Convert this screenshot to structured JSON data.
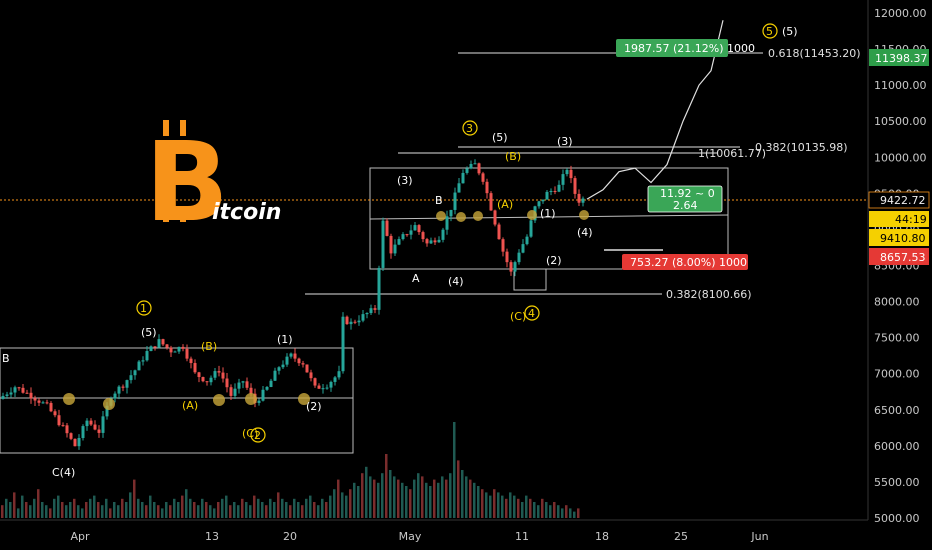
{
  "logo": {
    "letter": "B",
    "text": "itcoin",
    "color": "#f7931a"
  },
  "chart_data": {
    "type": "candlestick",
    "y_axis": {
      "ylim": [
        5000,
        12200
      ],
      "ticks": [
        "12000.00",
        "11500.00",
        "11000.00",
        "10500.00",
        "10000.00",
        "9500.00",
        "9000.00",
        "8500.00",
        "8000.00",
        "7500.00",
        "7000.00",
        "6500.00",
        "6000.00",
        "5500.00",
        "5000.00"
      ]
    },
    "x_axis": {
      "ticks": [
        "Apr",
        "13",
        "20",
        "May",
        "11",
        "18",
        "25",
        "Jun"
      ]
    },
    "price_tags": [
      {
        "label": "11398.37",
        "color": "#2e9e4a"
      },
      {
        "label": "9422.72",
        "color": "#f5d000",
        "text_color": "#000000"
      },
      {
        "label": "44:19",
        "color": "#f5d000",
        "text_color": "#000000"
      },
      {
        "label": "9410.80",
        "color": "#f5d000",
        "text_color": "#000000"
      },
      {
        "label": "8657.53",
        "color": "#e53935"
      }
    ],
    "current_price": 9422.72,
    "fib_levels": [
      {
        "label": "0.618(11453.20)",
        "value": 11453.2
      },
      {
        "label": "1(10061.77)",
        "value": 10061.77
      },
      {
        "label": "0.382(10135.98)",
        "value": 10135.98
      },
      {
        "label": "0.382(8100.66)",
        "value": 8100.66
      }
    ],
    "measure_boxes": [
      {
        "label": "1987.57 (21.12%) 1000",
        "color": "#3aa657"
      },
      {
        "label": "11.92 ~ 0",
        "label2": "2.64",
        "color": "#3aa657"
      },
      {
        "label": "753.27 (8.00%) 1000",
        "color": "#e53935"
      }
    ],
    "wave_labels": {
      "white": [
        "B",
        "C(4)",
        "(5)",
        "(1)",
        "(2)",
        "(3)",
        "A",
        "B",
        "(4)",
        "(5)",
        "(3)",
        "(1)",
        "(2)",
        "(4)",
        "(5)"
      ],
      "yellow": [
        "(B)",
        "(A)",
        "(C)",
        "(B)",
        "(A)",
        "(C)"
      ],
      "circled": [
        "1",
        "2",
        "3",
        "4",
        "5"
      ]
    },
    "price_path": [
      [
        0,
        6650
      ],
      [
        4,
        6820
      ],
      [
        8,
        6700
      ],
      [
        12,
        6550
      ],
      [
        16,
        6250
      ],
      [
        19,
        6000
      ],
      [
        22,
        6350
      ],
      [
        25,
        6200
      ],
      [
        28,
        6700
      ],
      [
        31,
        6850
      ],
      [
        34,
        7050
      ],
      [
        37,
        7300
      ],
      [
        40,
        7450
      ],
      [
        43,
        7320
      ],
      [
        46,
        7380
      ],
      [
        49,
        7000
      ],
      [
        52,
        6900
      ],
      [
        55,
        7050
      ],
      [
        58,
        6700
      ],
      [
        61,
        6900
      ],
      [
        64,
        6600
      ],
      [
        67,
        6800
      ],
      [
        70,
        7100
      ],
      [
        73,
        7250
      ],
      [
        76,
        7150
      ],
      [
        79,
        6800
      ],
      [
        82,
        6850
      ],
      [
        85,
        7000
      ],
      [
        86,
        7750
      ],
      [
        88,
        7700
      ],
      [
        91,
        7800
      ],
      [
        94,
        7900
      ],
      [
        96,
        9100
      ],
      [
        98,
        8700
      ],
      [
        101,
        8900
      ],
      [
        104,
        9050
      ],
      [
        107,
        8800
      ],
      [
        110,
        8900
      ],
      [
        113,
        9300
      ],
      [
        116,
        9800
      ],
      [
        119,
        9900
      ],
      [
        121,
        9700
      ],
      [
        124,
        9100
      ],
      [
        126,
        8700
      ],
      [
        128,
        8400
      ],
      [
        130,
        8700
      ],
      [
        132,
        8900
      ],
      [
        134,
        9300
      ],
      [
        137,
        9500
      ],
      [
        140,
        9600
      ],
      [
        142,
        9850
      ],
      [
        144,
        9500
      ],
      [
        145,
        9400
      ],
      [
        146,
        9420
      ]
    ],
    "projection_path": [
      [
        146,
        9420
      ],
      [
        150,
        9550
      ],
      [
        154,
        9800
      ],
      [
        158,
        9850
      ],
      [
        162,
        9650
      ],
      [
        166,
        9900
      ],
      [
        170,
        10500
      ],
      [
        174,
        11000
      ],
      [
        177,
        11200
      ],
      [
        180,
        11900
      ]
    ],
    "volume": [
      4,
      6,
      5,
      8,
      3,
      7,
      5,
      4,
      6,
      9,
      5,
      4,
      3,
      6,
      7,
      5,
      4,
      5,
      6,
      4,
      3,
      5,
      6,
      7,
      5,
      4,
      6,
      3,
      5,
      4,
      6,
      5,
      8,
      12,
      6,
      5,
      4,
      7,
      5,
      4,
      3,
      5,
      4,
      6,
      5,
      7,
      9,
      6,
      5,
      4,
      6,
      5,
      4,
      3,
      5,
      6,
      7,
      4,
      5,
      4,
      6,
      5,
      4,
      7,
      6,
      5,
      4,
      6,
      5,
      8,
      6,
      5,
      4,
      6,
      5,
      4,
      6,
      7,
      5,
      4,
      6,
      5,
      7,
      9,
      12,
      8,
      7,
      9,
      11,
      10,
      14,
      16,
      13,
      12,
      11,
      14,
      20,
      15,
      13,
      12,
      11,
      10,
      9,
      12,
      14,
      13,
      11,
      10,
      12,
      11,
      13,
      12,
      14,
      30,
      18,
      15,
      13,
      12,
      11,
      10,
      9,
      8,
      7,
      9,
      8,
      7,
      6,
      8,
      7,
      6,
      5,
      7,
      6,
      5,
      4,
      6,
      5,
      4,
      5,
      4,
      3,
      4,
      3,
      2,
      3
    ]
  }
}
